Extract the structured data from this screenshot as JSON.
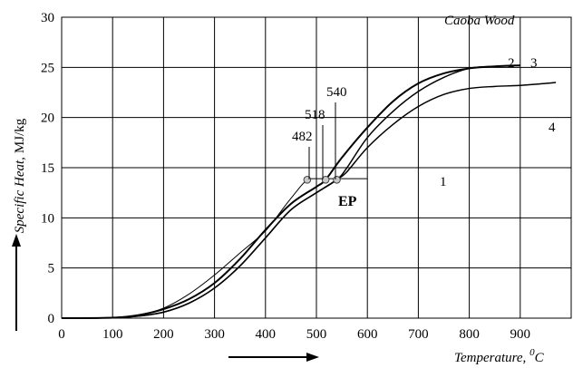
{
  "chart_data": {
    "type": "line",
    "title": "Caoba Wood",
    "xlabel": "Temperature, ",
    "xlabel_sup": "0",
    "xlabel_unit": "C",
    "ylabel_italic": "Specific Heat,",
    "ylabel_unit": "MJ/kg",
    "xlim": [
      0,
      1000
    ],
    "ylim": [
      0,
      30
    ],
    "x_ticks": [
      0,
      100,
      200,
      300,
      400,
      500,
      600,
      700,
      800,
      900
    ],
    "y_ticks": [
      0,
      5,
      10,
      15,
      20,
      25,
      30
    ],
    "grid": true,
    "series": [
      {
        "name": "1",
        "x": [
          0,
          100,
          150,
          200,
          250,
          300,
          350,
          400,
          440,
          470,
          482,
          490,
          500,
          520,
          600
        ],
        "y": [
          0,
          0.05,
          0.3,
          1.0,
          2.4,
          4.3,
          6.5,
          8.7,
          11.3,
          13.2,
          13.8,
          13.9,
          13.9,
          13.9,
          13.9
        ]
      },
      {
        "name": "2",
        "x": [
          0,
          100,
          150,
          200,
          250,
          300,
          350,
          400,
          450,
          500,
          518,
          550,
          600,
          650,
          700,
          750,
          800,
          850,
          900
        ],
        "y": [
          0,
          0.05,
          0.3,
          0.9,
          1.9,
          3.5,
          5.9,
          8.8,
          11.4,
          13.1,
          13.8,
          16.0,
          19.0,
          21.6,
          23.4,
          24.4,
          24.9,
          25.1,
          25.2
        ]
      },
      {
        "name": "3",
        "x": [
          0,
          100,
          150,
          200,
          250,
          300,
          350,
          400,
          450,
          500,
          540,
          560,
          600,
          650,
          700,
          750,
          800,
          850,
          900
        ],
        "y": [
          0,
          0.05,
          0.2,
          0.6,
          1.5,
          3.0,
          5.2,
          8.0,
          10.8,
          12.5,
          13.8,
          15.0,
          18.0,
          20.6,
          22.6,
          24.0,
          24.9,
          25.1,
          25.2
        ]
      },
      {
        "name": "4",
        "x": [
          0,
          100,
          150,
          200,
          250,
          300,
          350,
          400,
          450,
          500,
          540,
          560,
          600,
          650,
          700,
          750,
          800,
          850,
          900,
          950,
          970
        ],
        "y": [
          0,
          0.05,
          0.2,
          0.6,
          1.5,
          3.0,
          5.2,
          8.0,
          10.8,
          12.5,
          13.8,
          14.6,
          17.0,
          19.3,
          21.1,
          22.3,
          22.9,
          23.1,
          23.2,
          23.4,
          23.5
        ]
      }
    ],
    "markers": [
      {
        "label": "482",
        "x": 482,
        "y": 13.8
      },
      {
        "label": "518",
        "x": 518,
        "y": 13.8
      },
      {
        "label": "540",
        "x": 540,
        "y": 13.8
      }
    ],
    "annotations": {
      "ep": "EP",
      "curve_labels": [
        "1",
        "2",
        "3",
        "4"
      ]
    }
  }
}
